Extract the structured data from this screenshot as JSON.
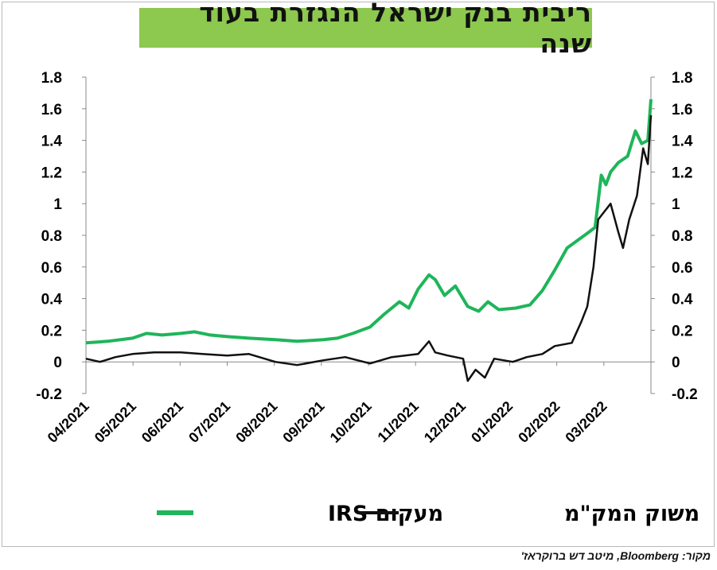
{
  "chart_data": {
    "type": "line",
    "title": "ריבית בנק ישראל הנגזרת בעוד שנה",
    "xlabel": "",
    "ylabel": "",
    "x_ticks": [
      "04/2021",
      "05/2021",
      "06/2021",
      "07/2021",
      "08/2021",
      "09/2021",
      "10/2021",
      "11/2021",
      "12/2021",
      "01/2022",
      "02/2022",
      "03/2022"
    ],
    "y_ticks": [
      "-0.2",
      "0",
      "0.2",
      "0.4",
      "0.6",
      "0.8",
      "1",
      "1.2",
      "1.4",
      "1.6",
      "1.8"
    ],
    "ylim": [
      -0.2,
      1.8
    ],
    "x_range": [
      "2021-04-01",
      "2022-03-31"
    ],
    "grid": false,
    "legend_position": "bottom",
    "series": [
      {
        "name": "מעקום IRS",
        "color": "#1fb55a",
        "axis": "left",
        "points": [
          [
            "2021-04-01",
            0.12
          ],
          [
            "2021-04-15",
            0.13
          ],
          [
            "2021-05-01",
            0.15
          ],
          [
            "2021-05-10",
            0.18
          ],
          [
            "2021-05-20",
            0.17
          ],
          [
            "2021-06-01",
            0.18
          ],
          [
            "2021-06-10",
            0.19
          ],
          [
            "2021-06-20",
            0.17
          ],
          [
            "2021-07-01",
            0.16
          ],
          [
            "2021-07-15",
            0.15
          ],
          [
            "2021-08-01",
            0.14
          ],
          [
            "2021-08-15",
            0.13
          ],
          [
            "2021-09-01",
            0.14
          ],
          [
            "2021-09-10",
            0.15
          ],
          [
            "2021-09-20",
            0.18
          ],
          [
            "2021-10-01",
            0.22
          ],
          [
            "2021-10-10",
            0.3
          ],
          [
            "2021-10-20",
            0.38
          ],
          [
            "2021-10-26",
            0.34
          ],
          [
            "2021-11-01",
            0.46
          ],
          [
            "2021-11-08",
            0.55
          ],
          [
            "2021-11-12",
            0.52
          ],
          [
            "2021-11-18",
            0.42
          ],
          [
            "2021-11-25",
            0.48
          ],
          [
            "2021-12-03",
            0.35
          ],
          [
            "2021-12-10",
            0.32
          ],
          [
            "2021-12-16",
            0.38
          ],
          [
            "2021-12-23",
            0.33
          ],
          [
            "2022-01-03",
            0.34
          ],
          [
            "2022-01-12",
            0.36
          ],
          [
            "2022-01-20",
            0.45
          ],
          [
            "2022-01-28",
            0.58
          ],
          [
            "2022-02-05",
            0.72
          ],
          [
            "2022-02-12",
            0.77
          ],
          [
            "2022-02-19",
            0.82
          ],
          [
            "2022-02-23",
            0.85
          ],
          [
            "2022-02-27",
            1.18
          ],
          [
            "2022-03-02",
            1.12
          ],
          [
            "2022-03-05",
            1.2
          ],
          [
            "2022-03-10",
            1.26
          ],
          [
            "2022-03-16",
            1.3
          ],
          [
            "2022-03-21",
            1.46
          ],
          [
            "2022-03-25",
            1.38
          ],
          [
            "2022-03-29",
            1.4
          ],
          [
            "2022-03-31",
            1.66
          ]
        ]
      },
      {
        "name": "משוק המק\"מ",
        "color": "#111111",
        "axis": "right",
        "points": [
          [
            "2021-04-01",
            0.02
          ],
          [
            "2021-04-10",
            0.0
          ],
          [
            "2021-04-20",
            0.03
          ],
          [
            "2021-05-01",
            0.05
          ],
          [
            "2021-05-15",
            0.06
          ],
          [
            "2021-06-01",
            0.06
          ],
          [
            "2021-06-15",
            0.05
          ],
          [
            "2021-07-01",
            0.04
          ],
          [
            "2021-07-15",
            0.05
          ],
          [
            "2021-08-01",
            0.0
          ],
          [
            "2021-08-15",
            -0.02
          ],
          [
            "2021-09-01",
            0.01
          ],
          [
            "2021-09-15",
            0.03
          ],
          [
            "2021-10-01",
            -0.01
          ],
          [
            "2021-10-15",
            0.03
          ],
          [
            "2021-11-01",
            0.05
          ],
          [
            "2021-11-08",
            0.13
          ],
          [
            "2021-11-12",
            0.06
          ],
          [
            "2021-11-20",
            0.04
          ],
          [
            "2021-11-30",
            0.02
          ],
          [
            "2021-12-03",
            -0.12
          ],
          [
            "2021-12-08",
            -0.05
          ],
          [
            "2021-12-14",
            -0.1
          ],
          [
            "2021-12-20",
            0.02
          ],
          [
            "2022-01-01",
            0.0
          ],
          [
            "2022-01-10",
            0.03
          ],
          [
            "2022-01-20",
            0.05
          ],
          [
            "2022-01-28",
            0.1
          ],
          [
            "2022-02-08",
            0.12
          ],
          [
            "2022-02-14",
            0.25
          ],
          [
            "2022-02-18",
            0.35
          ],
          [
            "2022-02-22",
            0.6
          ],
          [
            "2022-02-25",
            0.9
          ],
          [
            "2022-03-01",
            0.95
          ],
          [
            "2022-03-05",
            1.0
          ],
          [
            "2022-03-10",
            0.82
          ],
          [
            "2022-03-13",
            0.72
          ],
          [
            "2022-03-17",
            0.9
          ],
          [
            "2022-03-22",
            1.05
          ],
          [
            "2022-03-26",
            1.35
          ],
          [
            "2022-03-29",
            1.25
          ],
          [
            "2022-03-31",
            1.56
          ]
        ]
      }
    ]
  },
  "source_text": "מקור: Bloomberg, מיטב דש ברוקראז'"
}
